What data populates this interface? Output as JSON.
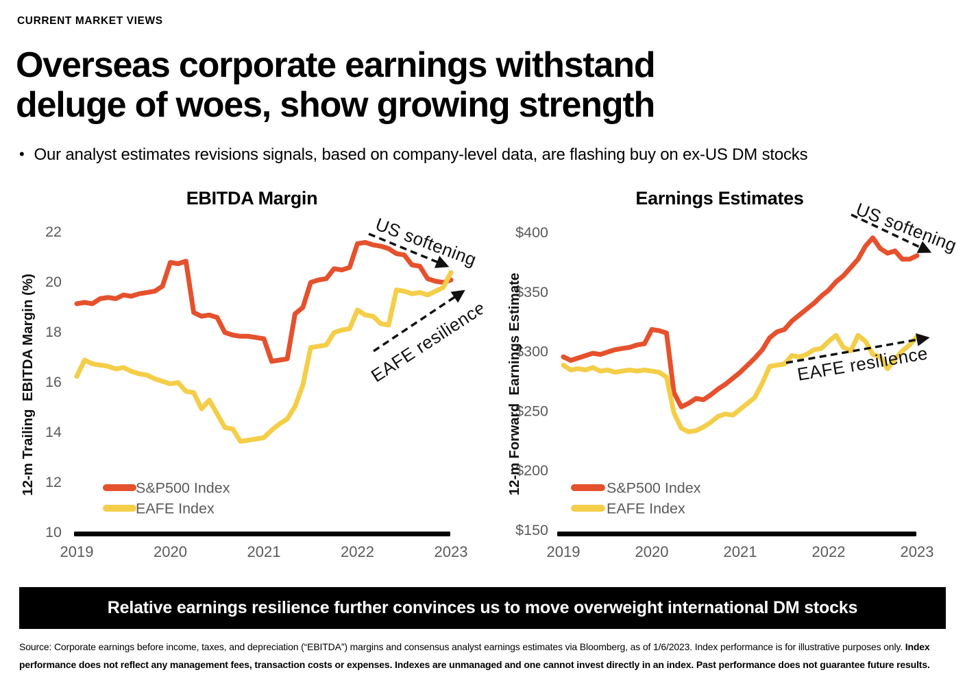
{
  "page": {
    "eyebrow": "CURRENT MARKET VIEWS",
    "title": "Overseas corporate earnings withstand\ndeluge of woes, show growing strength",
    "bullet": "Our analyst estimates revisions signals, based on company-level data, are flashing buy on ex-US DM stocks",
    "banner": "Relative earnings resilience further convinces us to move overweight international DM stocks",
    "source_normal": "Source:  Corporate earnings before income, taxes, and depreciation (“EBITDA”) margins and consensus analyst earnings estimates via Bloomberg, as of 1/6/2023. Index performance is for illustrative purposes only.  ",
    "source_bold": "Index performance does not reflect any management fees, transaction costs or expenses. Indexes are unmanaged and one cannot invest directly in an index. Past performance does not guarantee future results."
  },
  "colors": {
    "sp500": "#E5512D",
    "eafe": "#F4CE49",
    "axis_text": "#5a5a5a",
    "ink": "#111111",
    "banner_bg": "#000000",
    "banner_text": "#ffffff"
  },
  "chart_data": [
    {
      "type": "line",
      "title": "EBITDA Margin",
      "ylabel": "12-m Trailing  EBITDA Margin (%)",
      "ylim": [
        10,
        22
      ],
      "ytick_values": [
        10,
        12,
        14,
        16,
        18,
        20,
        22
      ],
      "ytick_labels": [
        "10",
        "12",
        "14",
        "16",
        "18",
        "20",
        "22"
      ],
      "x_years": [
        "2019",
        "2020",
        "2021",
        "2022",
        "2023"
      ],
      "points_per_year": 12,
      "legend_position": "lower-left",
      "grid": false,
      "series": [
        {
          "name": "S&P500 Index",
          "color_key": "sp500",
          "values": [
            19.1,
            19.15,
            19.1,
            19.3,
            19.35,
            19.3,
            19.45,
            19.4,
            19.5,
            19.55,
            19.6,
            19.8,
            20.75,
            20.7,
            20.8,
            18.75,
            18.6,
            18.65,
            18.55,
            17.95,
            17.85,
            17.8,
            17.8,
            17.75,
            17.7,
            16.8,
            16.85,
            16.9,
            18.7,
            18.95,
            19.95,
            20.05,
            20.1,
            20.5,
            20.45,
            20.55,
            21.5,
            21.55,
            21.45,
            21.4,
            21.3,
            21.1,
            21.05,
            20.65,
            20.6,
            20.1,
            20.0,
            19.95,
            20.05
          ]
        },
        {
          "name": "EAFE Index",
          "color_key": "eafe",
          "values": [
            16.2,
            16.85,
            16.7,
            16.65,
            16.6,
            16.5,
            16.55,
            16.4,
            16.3,
            16.25,
            16.1,
            16.0,
            15.9,
            15.95,
            15.6,
            15.55,
            14.9,
            15.25,
            14.7,
            14.15,
            14.1,
            13.6,
            13.65,
            13.7,
            13.75,
            14.05,
            14.3,
            14.5,
            15.0,
            15.85,
            17.35,
            17.4,
            17.45,
            17.95,
            18.05,
            18.1,
            18.85,
            18.65,
            18.6,
            18.3,
            18.25,
            19.65,
            19.6,
            19.5,
            19.55,
            19.45,
            19.6,
            19.75,
            20.35
          ]
        }
      ],
      "annotations": [
        {
          "text": "US softening",
          "direction": "down-right"
        },
        {
          "text": "EAFE resilience",
          "direction": "up-right"
        }
      ]
    },
    {
      "type": "line",
      "title": "Earnings Estimates",
      "ylabel": "12-m Forward  Earnings Estimate",
      "ylim": [
        150,
        400
      ],
      "ytick_values": [
        150,
        200,
        250,
        300,
        350,
        400
      ],
      "ytick_labels": [
        "$150",
        "$200",
        "$250",
        "$300",
        "$350",
        "$400"
      ],
      "x_years": [
        "2019",
        "2020",
        "2021",
        "2022",
        "2023"
      ],
      "points_per_year": 12,
      "legend_position": "lower-left",
      "grid": false,
      "series": [
        {
          "name": "S&P500 Index",
          "color_key": "sp500",
          "values": [
            295,
            292,
            294,
            296,
            298,
            297,
            299,
            301,
            302,
            303,
            305,
            306,
            318,
            317,
            315,
            265,
            253,
            256,
            260,
            259,
            263,
            268,
            272,
            277,
            282,
            288,
            294,
            301,
            311,
            316,
            318,
            325,
            330,
            335,
            340,
            346,
            351,
            358,
            363,
            370,
            377,
            388,
            395,
            386,
            382,
            384,
            377,
            377,
            380
          ]
        },
        {
          "name": "EAFE Index",
          "color_key": "eafe",
          "values": [
            288,
            284,
            285,
            284,
            286,
            283,
            284,
            282,
            283,
            284,
            283,
            284,
            283,
            282,
            278,
            248,
            235,
            232,
            233,
            236,
            240,
            245,
            247,
            246,
            251,
            256,
            261,
            273,
            287,
            288,
            289,
            296,
            295,
            297,
            301,
            302,
            308,
            313,
            303,
            300,
            313,
            308,
            297,
            295,
            285,
            293,
            300,
            305,
            312
          ]
        }
      ],
      "annotations": [
        {
          "text": "US softening",
          "direction": "down-right"
        },
        {
          "text": "EAFE resilience",
          "direction": "up-right"
        }
      ]
    }
  ]
}
